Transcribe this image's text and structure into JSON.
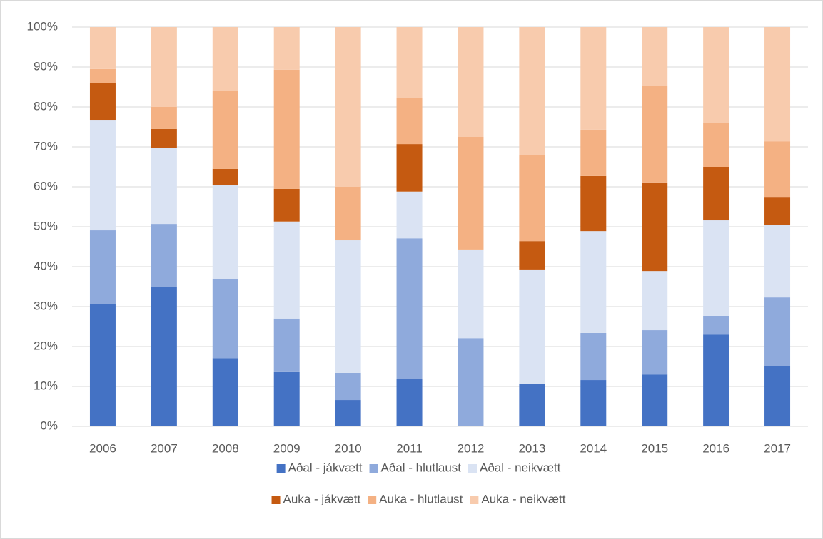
{
  "chart_data": {
    "type": "bar",
    "stacked": true,
    "categories": [
      "2006",
      "2007",
      "2008",
      "2009",
      "2010",
      "2011",
      "2012",
      "2013",
      "2014",
      "2015",
      "2016",
      "2017"
    ],
    "series": [
      {
        "name": "Aðal - jákvætt",
        "color": "#4472c4",
        "values": [
          30.7,
          35.0,
          17.1,
          13.6,
          6.6,
          11.8,
          0,
          10.7,
          11.6,
          13.0,
          23.0,
          15.0
        ]
      },
      {
        "name": "Aðal - hlutlaust",
        "color": "#8faadc",
        "values": [
          18.4,
          15.7,
          19.7,
          13.4,
          6.8,
          35.3,
          22.1,
          0,
          11.8,
          11.1,
          4.7,
          17.3
        ]
      },
      {
        "name": "Aðal - neikvætt",
        "color": "#dae3f3",
        "values": [
          27.5,
          19.1,
          23.7,
          24.3,
          33.2,
          11.7,
          22.2,
          28.6,
          25.5,
          14.8,
          23.9,
          18.2
        ]
      },
      {
        "name": "Auka - jákvætt",
        "color": "#c55a11",
        "values": [
          9.3,
          4.7,
          4.0,
          8.2,
          0,
          11.9,
          0,
          7.1,
          13.8,
          22.2,
          13.4,
          6.8
        ]
      },
      {
        "name": "Auka - hlutlaust",
        "color": "#f4b183",
        "values": [
          3.6,
          5.5,
          19.6,
          29.8,
          13.4,
          11.6,
          28.2,
          21.6,
          11.6,
          24.1,
          10.9,
          14.1
        ]
      },
      {
        "name": "Auka - neikvætt",
        "color": "#f8cbad",
        "values": [
          10.5,
          20.0,
          15.9,
          10.7,
          40.0,
          17.7,
          27.5,
          32.0,
          25.7,
          14.8,
          24.1,
          28.6
        ]
      }
    ],
    "ylim": [
      0,
      100
    ],
    "yticks": [
      {
        "value": 0,
        "label": "0%"
      },
      {
        "value": 10,
        "label": "10%"
      },
      {
        "value": 20,
        "label": "20%"
      },
      {
        "value": 30,
        "label": "30%"
      },
      {
        "value": 40,
        "label": "40%"
      },
      {
        "value": 50,
        "label": "50%"
      },
      {
        "value": 60,
        "label": "60%"
      },
      {
        "value": 70,
        "label": "70%"
      },
      {
        "value": 80,
        "label": "80%"
      },
      {
        "value": 90,
        "label": "90%"
      },
      {
        "value": 100,
        "label": "100%"
      }
    ],
    "grid": true,
    "legend": "bottom"
  }
}
